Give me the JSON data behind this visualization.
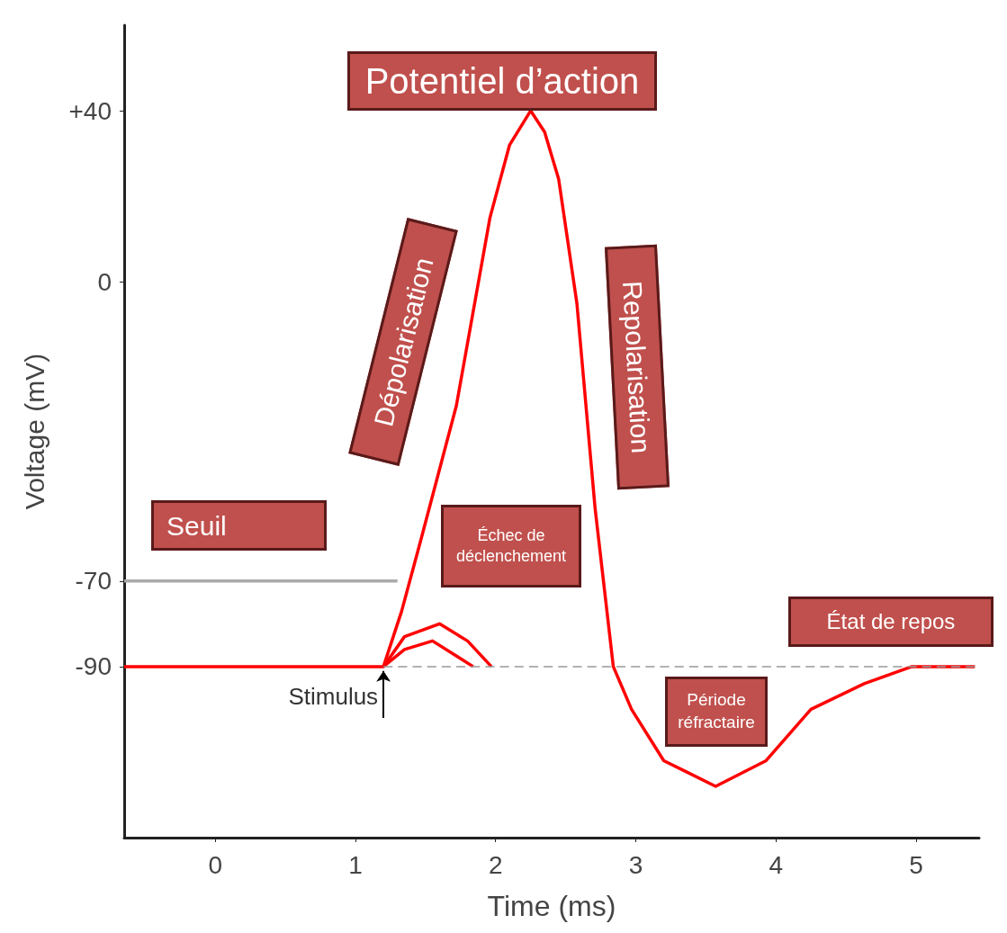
{
  "chart_data": {
    "type": "line",
    "title": "Potentiel d’action",
    "xlabel": "Time (ms)",
    "ylabel": "Voltage (mV)",
    "xlim": [
      -0.65,
      5.45
    ],
    "xticks": [
      0,
      1,
      2,
      3,
      4,
      5
    ],
    "ylim": [
      -130,
      60
    ],
    "yticks": [
      -90,
      -70,
      0,
      {
        "value": 40,
        "label": "+40"
      }
    ],
    "marker": "none",
    "series": [
      {
        "color": "#ff0000",
        "line_style": "solid",
        "x": [
          -0.65,
          1.2,
          1.33,
          1.47,
          1.72,
          1.96,
          2.1,
          2.25,
          2.35,
          2.45,
          2.58,
          2.71,
          2.84,
          2.97,
          3.2,
          3.57,
          3.93,
          4.25,
          4.63,
          4.97,
          5.42
        ],
        "values": [
          -90,
          -90,
          -77,
          -60,
          -29,
          15,
          32,
          40,
          35,
          24,
          -5,
          -53,
          -90,
          -100,
          -112,
          -118,
          -112,
          -100,
          -94,
          -90,
          -90
        ]
      },
      {
        "color": "#ff0000",
        "line_style": "solid",
        "x": [
          1.2,
          1.35,
          1.6,
          1.8,
          1.97
        ],
        "values": [
          -90,
          -83,
          -80,
          -84,
          -90
        ]
      },
      {
        "color": "#ff0000",
        "line_style": "solid",
        "x": [
          1.2,
          1.35,
          1.55,
          1.84
        ],
        "values": [
          -90,
          -86,
          -84,
          -90
        ]
      },
      {
        "color": "#999999",
        "line_style": "dashed",
        "x": [
          1.2,
          5.42
        ],
        "values": [
          -90,
          -90
        ]
      },
      {
        "color": "#aaaaaa",
        "line_style": "solid",
        "x": [
          -0.65,
          1.3
        ],
        "values": [
          -70,
          -70
        ]
      }
    ],
    "annotations": [
      "Dépolarisation",
      "Repolarisation",
      "Seuil",
      "Échec de déclenchement",
      "État de repos",
      "Période réfractaire",
      {
        "text": "Stimulus",
        "x": 1.2,
        "y": -90
      }
    ]
  }
}
